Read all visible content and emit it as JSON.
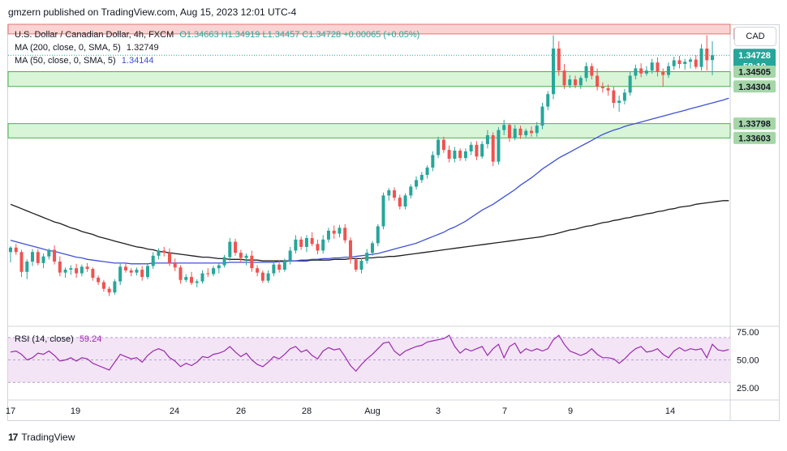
{
  "publisher_line": "gmzern published on TradingView.com, Aug 15, 2023 12:01 UTC-4",
  "legend": {
    "symbol": "U.S. Dollar / Canadian Dollar, 4h, FXCM",
    "ohlc": "O1.34663 H1.34919 L1.34457 C1.34728 +0.00065 (+0.05%)",
    "ma200_label": "MA (200, close, 0, SMA, 5)",
    "ma200_value": "1.32749",
    "ma50_label": "MA (50, close, 0, SMA, 5)",
    "ma50_value": "1.34144",
    "rsi_label": "RSI (14, close)",
    "rsi_value": "59.24"
  },
  "currency_button": "CAD",
  "footer_logo": "TradingView",
  "colors": {
    "up": "#26a69a",
    "down": "#ef5350",
    "ma50": "#3f51d6",
    "ma200": "#1e1e1e",
    "rsi": "#9c27b0",
    "rsi_band": "#f3e5f5",
    "support_zone": "#d8f5d8",
    "resistance_zone": "#fbd3d3",
    "level_border": "#4caf50",
    "last_price": "#26a69a"
  },
  "chart_data": {
    "type": "candlestick",
    "title": "U.S. Dollar / Canadian Dollar, 4h, FXCM",
    "x_tick_labels": [
      "17",
      "19",
      "24",
      "26",
      "28",
      "Aug",
      "3",
      "7",
      "9",
      "14"
    ],
    "y_price_range": [
      1.3105,
      1.3515
    ],
    "price_levels": [
      {
        "value": 1.35019,
        "label": "1.35019",
        "kind": "resistance"
      },
      {
        "value": 1.34728,
        "label": "1.34728",
        "kind": "last",
        "countdown": "58:19"
      },
      {
        "value": 1.34505,
        "label": "1.34505",
        "kind": "support"
      },
      {
        "value": 1.34304,
        "label": "1.34304",
        "kind": "support"
      },
      {
        "value": 1.33798,
        "label": "1.33798",
        "kind": "support"
      },
      {
        "value": 1.33603,
        "label": "1.33603",
        "kind": "support"
      }
    ],
    "candles": [
      [
        1.3205,
        1.3213,
        1.3191,
        1.3211
      ],
      [
        1.3211,
        1.3216,
        1.3201,
        1.3205
      ],
      [
        1.3205,
        1.3208,
        1.3171,
        1.3178
      ],
      [
        1.3178,
        1.3195,
        1.3168,
        1.3192
      ],
      [
        1.3192,
        1.3209,
        1.3186,
        1.3205
      ],
      [
        1.3205,
        1.3209,
        1.3187,
        1.319
      ],
      [
        1.319,
        1.3203,
        1.3183,
        1.3199
      ],
      [
        1.3199,
        1.321,
        1.3195,
        1.3208
      ],
      [
        1.3208,
        1.3214,
        1.3188,
        1.3192
      ],
      [
        1.3192,
        1.3199,
        1.3172,
        1.3177
      ],
      [
        1.3177,
        1.3184,
        1.317,
        1.3181
      ],
      [
        1.3181,
        1.3187,
        1.3174,
        1.3183
      ],
      [
        1.3183,
        1.3189,
        1.317,
        1.3176
      ],
      [
        1.3176,
        1.3188,
        1.3172,
        1.3185
      ],
      [
        1.3185,
        1.319,
        1.3178,
        1.3182
      ],
      [
        1.3182,
        1.3184,
        1.3166,
        1.317
      ],
      [
        1.317,
        1.3173,
        1.316,
        1.3164
      ],
      [
        1.3164,
        1.3167,
        1.3151,
        1.3155
      ],
      [
        1.3155,
        1.3158,
        1.3145,
        1.315
      ],
      [
        1.315,
        1.3168,
        1.3147,
        1.3165
      ],
      [
        1.3165,
        1.3189,
        1.316,
        1.3185
      ],
      [
        1.3185,
        1.319,
        1.3177,
        1.318
      ],
      [
        1.318,
        1.3183,
        1.3172,
        1.3177
      ],
      [
        1.3177,
        1.3184,
        1.3173,
        1.3181
      ],
      [
        1.3181,
        1.3186,
        1.3166,
        1.3171
      ],
      [
        1.3171,
        1.3189,
        1.3168,
        1.3186
      ],
      [
        1.3186,
        1.3205,
        1.3182,
        1.32
      ],
      [
        1.32,
        1.321,
        1.3195,
        1.3207
      ],
      [
        1.3207,
        1.3212,
        1.3199,
        1.3204
      ],
      [
        1.3204,
        1.321,
        1.3186,
        1.319
      ],
      [
        1.319,
        1.3196,
        1.3179,
        1.3184
      ],
      [
        1.3184,
        1.3187,
        1.3162,
        1.3167
      ],
      [
        1.3167,
        1.3175,
        1.3164,
        1.3171
      ],
      [
        1.3171,
        1.3178,
        1.316,
        1.3163
      ],
      [
        1.3163,
        1.3168,
        1.3157,
        1.3165
      ],
      [
        1.3165,
        1.318,
        1.3162,
        1.3176
      ],
      [
        1.3176,
        1.3183,
        1.3171,
        1.3175
      ],
      [
        1.3175,
        1.3186,
        1.3172,
        1.3183
      ],
      [
        1.3183,
        1.319,
        1.3176,
        1.3187
      ],
      [
        1.3187,
        1.3201,
        1.3184,
        1.3198
      ],
      [
        1.3198,
        1.3224,
        1.3193,
        1.3219
      ],
      [
        1.3219,
        1.3223,
        1.32,
        1.3204
      ],
      [
        1.3204,
        1.3208,
        1.3191,
        1.3197
      ],
      [
        1.3197,
        1.3203,
        1.3187,
        1.32
      ],
      [
        1.32,
        1.3207,
        1.3178,
        1.3183
      ],
      [
        1.3183,
        1.3187,
        1.3172,
        1.3177
      ],
      [
        1.3177,
        1.318,
        1.3163,
        1.3166
      ],
      [
        1.3166,
        1.318,
        1.3163,
        1.3176
      ],
      [
        1.3176,
        1.3193,
        1.3172,
        1.3188
      ],
      [
        1.3188,
        1.3194,
        1.3177,
        1.3181
      ],
      [
        1.3181,
        1.3196,
        1.3178,
        1.3193
      ],
      [
        1.3193,
        1.3212,
        1.3188,
        1.3207
      ],
      [
        1.3207,
        1.3228,
        1.3203,
        1.3222
      ],
      [
        1.3222,
        1.3226,
        1.3208,
        1.3212
      ],
      [
        1.3212,
        1.3228,
        1.3205,
        1.3224
      ],
      [
        1.3224,
        1.3232,
        1.3213,
        1.3216
      ],
      [
        1.3216,
        1.3222,
        1.3202,
        1.3207
      ],
      [
        1.3207,
        1.3228,
        1.3203,
        1.3222
      ],
      [
        1.3222,
        1.3238,
        1.3218,
        1.3234
      ],
      [
        1.3234,
        1.3241,
        1.3223,
        1.323
      ],
      [
        1.323,
        1.3242,
        1.3225,
        1.3238
      ],
      [
        1.3238,
        1.3243,
        1.3217,
        1.3221
      ],
      [
        1.3221,
        1.3225,
        1.3189,
        1.3195
      ],
      [
        1.3195,
        1.3197,
        1.3178,
        1.3181
      ],
      [
        1.3181,
        1.3197,
        1.3176,
        1.3193
      ],
      [
        1.3193,
        1.3209,
        1.3189,
        1.3204
      ],
      [
        1.3204,
        1.322,
        1.32,
        1.3217
      ],
      [
        1.3217,
        1.3243,
        1.3213,
        1.324
      ],
      [
        1.324,
        1.3286,
        1.3236,
        1.3282
      ],
      [
        1.3282,
        1.3292,
        1.3275,
        1.3289
      ],
      [
        1.3289,
        1.3293,
        1.3275,
        1.3279
      ],
      [
        1.3279,
        1.3283,
        1.3263,
        1.3267
      ],
      [
        1.3267,
        1.3285,
        1.3263,
        1.3282
      ],
      [
        1.3282,
        1.3297,
        1.3278,
        1.3294
      ],
      [
        1.3294,
        1.3308,
        1.329,
        1.3303
      ],
      [
        1.3303,
        1.3314,
        1.3299,
        1.331
      ],
      [
        1.331,
        1.3323,
        1.3305,
        1.332
      ],
      [
        1.332,
        1.3342,
        1.3315,
        1.3337
      ],
      [
        1.3337,
        1.3362,
        1.3333,
        1.3358
      ],
      [
        1.3358,
        1.3362,
        1.334,
        1.3344
      ],
      [
        1.3344,
        1.335,
        1.3327,
        1.3332
      ],
      [
        1.3332,
        1.3348,
        1.3327,
        1.3343
      ],
      [
        1.3343,
        1.3346,
        1.3329,
        1.3333
      ],
      [
        1.3333,
        1.3346,
        1.3329,
        1.3342
      ],
      [
        1.3342,
        1.3355,
        1.3337,
        1.3351
      ],
      [
        1.3351,
        1.3356,
        1.333,
        1.3335
      ],
      [
        1.3335,
        1.3356,
        1.3332,
        1.3352
      ],
      [
        1.3352,
        1.3371,
        1.3346,
        1.3364
      ],
      [
        1.3364,
        1.3368,
        1.3322,
        1.3328
      ],
      [
        1.3328,
        1.3375,
        1.3324,
        1.3371
      ],
      [
        1.3371,
        1.3385,
        1.3364,
        1.3378
      ],
      [
        1.3378,
        1.338,
        1.3355,
        1.336
      ],
      [
        1.336,
        1.3378,
        1.3357,
        1.3373
      ],
      [
        1.3373,
        1.3377,
        1.3359,
        1.3364
      ],
      [
        1.3364,
        1.3373,
        1.3361,
        1.337
      ],
      [
        1.337,
        1.3376,
        1.3362,
        1.3367
      ],
      [
        1.3367,
        1.3382,
        1.3362,
        1.3377
      ],
      [
        1.3377,
        1.3408,
        1.3372,
        1.3403
      ],
      [
        1.3403,
        1.3424,
        1.3398,
        1.342
      ],
      [
        1.342,
        1.35,
        1.3413,
        1.3482
      ],
      [
        1.3482,
        1.3492,
        1.3445,
        1.3452
      ],
      [
        1.3452,
        1.3461,
        1.3427,
        1.3432
      ],
      [
        1.3432,
        1.3446,
        1.3428,
        1.344
      ],
      [
        1.344,
        1.3445,
        1.3428,
        1.3432
      ],
      [
        1.3432,
        1.3445,
        1.3427,
        1.3442
      ],
      [
        1.3442,
        1.3463,
        1.3437,
        1.3458
      ],
      [
        1.3458,
        1.3462,
        1.344,
        1.3445
      ],
      [
        1.3445,
        1.3455,
        1.3425,
        1.343
      ],
      [
        1.343,
        1.3436,
        1.3422,
        1.3428
      ],
      [
        1.3428,
        1.3433,
        1.3418,
        1.3425
      ],
      [
        1.3425,
        1.343,
        1.3401,
        1.3408
      ],
      [
        1.3408,
        1.3418,
        1.3396,
        1.3411
      ],
      [
        1.3411,
        1.3427,
        1.3406,
        1.3422
      ],
      [
        1.3422,
        1.345,
        1.3418,
        1.3445
      ],
      [
        1.3445,
        1.346,
        1.344,
        1.3455
      ],
      [
        1.3455,
        1.3462,
        1.3443,
        1.3448
      ],
      [
        1.3448,
        1.3458,
        1.3445,
        1.3452
      ],
      [
        1.3452,
        1.3468,
        1.3448,
        1.3463
      ],
      [
        1.3463,
        1.347,
        1.3444,
        1.345
      ],
      [
        1.345,
        1.3455,
        1.343,
        1.3446
      ],
      [
        1.3446,
        1.3463,
        1.3442,
        1.3458
      ],
      [
        1.3458,
        1.3471,
        1.3453,
        1.3466
      ],
      [
        1.3466,
        1.3472,
        1.3455,
        1.3461
      ],
      [
        1.3461,
        1.3468,
        1.3453,
        1.3464
      ],
      [
        1.3464,
        1.347,
        1.3455,
        1.3467
      ],
      [
        1.3467,
        1.3473,
        1.3454,
        1.3457
      ],
      [
        1.3457,
        1.3488,
        1.3452,
        1.3482
      ],
      [
        1.3482,
        1.35,
        1.3452,
        1.3466
      ],
      [
        1.34663,
        1.34919,
        1.34457,
        1.34728
      ]
    ],
    "ma50_series": [
      1.3221,
      1.3219,
      1.3217,
      1.3215,
      1.3213,
      1.3211,
      1.3209,
      1.3207,
      1.3206,
      1.3204,
      1.3202,
      1.32,
      1.3198,
      1.3197,
      1.3195,
      1.3194,
      1.3193,
      1.3192,
      1.3191,
      1.319,
      1.319,
      1.319,
      1.3189,
      1.3189,
      1.3189,
      1.3189,
      1.319,
      1.319,
      1.319,
      1.319,
      1.319,
      1.319,
      1.319,
      1.319,
      1.319,
      1.319,
      1.319,
      1.319,
      1.319,
      1.319,
      1.3191,
      1.3191,
      1.3191,
      1.3191,
      1.3191,
      1.3191,
      1.3191,
      1.3191,
      1.3191,
      1.3192,
      1.3192,
      1.3193,
      1.3193,
      1.3194,
      1.3194,
      1.3195,
      1.3195,
      1.3196,
      1.3196,
      1.3197,
      1.3197,
      1.3198,
      1.3198,
      1.3199,
      1.32,
      1.3201,
      1.3202,
      1.3203,
      1.3205,
      1.3207,
      1.3209,
      1.3211,
      1.3213,
      1.3215,
      1.3217,
      1.322,
      1.3223,
      1.3226,
      1.3229,
      1.3232,
      1.3236,
      1.3239,
      1.3243,
      1.3247,
      1.3252,
      1.3257,
      1.3262,
      1.3266,
      1.327,
      1.3275,
      1.328,
      1.3285,
      1.329,
      1.3296,
      1.3301,
      1.3306,
      1.3312,
      1.3318,
      1.3323,
      1.3328,
      1.3333,
      1.3337,
      1.3341,
      1.3345,
      1.3349,
      1.3353,
      1.3357,
      1.3361,
      1.3365,
      1.3368,
      1.3371,
      1.3373,
      1.3376,
      1.3378,
      1.338,
      1.3382,
      1.3384,
      1.3386,
      1.3388,
      1.339,
      1.3392,
      1.3394,
      1.3396,
      1.3398,
      1.34,
      1.3402,
      1.3404,
      1.3406,
      1.3408,
      1.341,
      1.3412,
      1.34144
    ],
    "ma200_series": [
      1.327,
      1.3267,
      1.3264,
      1.3261,
      1.3258,
      1.3255,
      1.3252,
      1.3249,
      1.3246,
      1.3244,
      1.3241,
      1.3238,
      1.3236,
      1.3233,
      1.3231,
      1.3229,
      1.3226,
      1.3224,
      1.3222,
      1.322,
      1.3218,
      1.3216,
      1.3214,
      1.3212,
      1.3211,
      1.3209,
      1.3208,
      1.3206,
      1.3205,
      1.3204,
      1.3203,
      1.3202,
      1.3201,
      1.32,
      1.3199,
      1.3198,
      1.3198,
      1.3197,
      1.3196,
      1.3196,
      1.3195,
      1.3195,
      1.3195,
      1.3194,
      1.3194,
      1.3194,
      1.3193,
      1.3193,
      1.3193,
      1.3193,
      1.3193,
      1.3193,
      1.3193,
      1.3193,
      1.3193,
      1.3194,
      1.3194,
      1.3194,
      1.3194,
      1.3195,
      1.3195,
      1.3195,
      1.3196,
      1.3196,
      1.3196,
      1.3197,
      1.3197,
      1.3198,
      1.3198,
      1.3199,
      1.3199,
      1.32,
      1.3201,
      1.3202,
      1.3203,
      1.3204,
      1.3205,
      1.3206,
      1.3207,
      1.3208,
      1.3209,
      1.321,
      1.3211,
      1.3212,
      1.3213,
      1.3214,
      1.3215,
      1.3216,
      1.3217,
      1.3218,
      1.3219,
      1.322,
      1.3221,
      1.3222,
      1.3223,
      1.3224,
      1.3225,
      1.3226,
      1.3228,
      1.3229,
      1.3231,
      1.3233,
      1.3235,
      1.3236,
      1.3238,
      1.324,
      1.3241,
      1.3243,
      1.3245,
      1.3246,
      1.3248,
      1.3249,
      1.3251,
      1.3252,
      1.3254,
      1.3255,
      1.3257,
      1.3258,
      1.326,
      1.3261,
      1.3263,
      1.3264,
      1.3266,
      1.3267,
      1.3268,
      1.327,
      1.3271,
      1.3272,
      1.3273,
      1.3274,
      1.3275,
      1.32749
    ],
    "rsi": {
      "y_range": [
        15,
        80
      ],
      "y_tick_labels": [
        "75.00",
        "50.00",
        "25.00"
      ],
      "y_ticks": [
        75,
        50,
        25
      ],
      "band": [
        30,
        70
      ],
      "values": [
        57,
        58,
        55,
        50,
        52,
        56,
        55,
        58,
        54,
        49,
        50,
        52,
        49,
        52,
        51,
        47,
        45,
        43,
        41,
        48,
        55,
        53,
        51,
        52,
        48,
        54,
        58,
        60,
        58,
        52,
        49,
        44,
        47,
        45,
        48,
        53,
        52,
        55,
        56,
        58,
        62,
        57,
        53,
        56,
        50,
        46,
        44,
        48,
        53,
        51,
        55,
        60,
        62,
        57,
        59,
        54,
        51,
        58,
        61,
        59,
        60,
        53,
        45,
        40,
        46,
        51,
        55,
        60,
        65,
        66,
        58,
        54,
        58,
        60,
        62,
        63,
        66,
        67,
        68,
        69,
        72,
        62,
        56,
        60,
        58,
        60,
        62,
        54,
        60,
        64,
        52,
        62,
        65,
        56,
        60,
        58,
        60,
        58,
        60,
        68,
        72,
        64,
        58,
        56,
        54,
        56,
        60,
        55,
        52,
        52,
        51,
        47,
        51,
        56,
        60,
        62,
        57,
        58,
        60,
        55,
        52,
        58,
        61,
        58,
        60,
        59,
        60,
        52,
        64,
        59,
        58,
        59.24
      ]
    }
  }
}
